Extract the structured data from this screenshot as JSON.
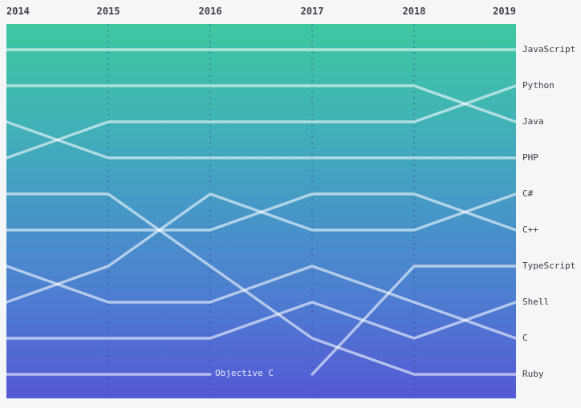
{
  "page": {
    "background": "#f5f6f8"
  },
  "x_axis": {
    "years": [
      "2014",
      "2015",
      "2016",
      "2017",
      "2018",
      "2019"
    ]
  },
  "language_labels": [
    "JavaScript",
    "Python",
    "Java",
    "PHP",
    "C#",
    "C++",
    "TypeScript",
    "Shell",
    "C",
    "Ruby"
  ],
  "inline_label": {
    "text": "Objective C"
  },
  "colors": {
    "gradient_top": "#3fc7a0",
    "gradient_upper": "#40b4b6",
    "gradient_mid": "#4697c8",
    "gradient_lower": "#4e7bd2",
    "gradient_bottom": "#5459d4",
    "series_line": "rgba(255,255,255,0.58)",
    "grid_dash": "rgba(25,45,115,0.30)",
    "axis_text": "#3f3f46",
    "inline_text": "rgba(255,255,255,0.85)"
  },
  "chart_data": {
    "type": "line",
    "variant": "bump-rank",
    "x": [
      2014,
      2015,
      2016,
      2017,
      2018,
      2019
    ],
    "rank_axis": {
      "best": 1,
      "worst": 10,
      "direction": "down"
    },
    "grid": "dashed-vertical-year-lines",
    "legend_position": "right",
    "series": [
      {
        "name": "JavaScript",
        "ranks": [
          1,
          1,
          1,
          1,
          1,
          1
        ]
      },
      {
        "name": "Python",
        "ranks": [
          4,
          3,
          3,
          3,
          3,
          2
        ]
      },
      {
        "name": "Java",
        "ranks": [
          2,
          2,
          2,
          2,
          2,
          3
        ]
      },
      {
        "name": "PHP",
        "ranks": [
          3,
          4,
          4,
          4,
          4,
          4
        ]
      },
      {
        "name": "C#",
        "ranks": [
          8,
          7,
          5,
          6,
          6,
          5
        ]
      },
      {
        "name": "C++",
        "ranks": [
          6,
          6,
          6,
          5,
          5,
          6
        ]
      },
      {
        "name": "TypeScript",
        "ranks": [
          null,
          null,
          null,
          10,
          7,
          7
        ]
      },
      {
        "name": "Shell",
        "ranks": [
          9,
          9,
          9,
          8,
          9,
          8
        ]
      },
      {
        "name": "C",
        "ranks": [
          7,
          8,
          8,
          7,
          8,
          9
        ]
      },
      {
        "name": "Ruby",
        "ranks": [
          5,
          5,
          7,
          9,
          10,
          10
        ]
      },
      {
        "name": "Objective C",
        "ranks": [
          10,
          10,
          10,
          null,
          null,
          null
        ]
      }
    ]
  }
}
